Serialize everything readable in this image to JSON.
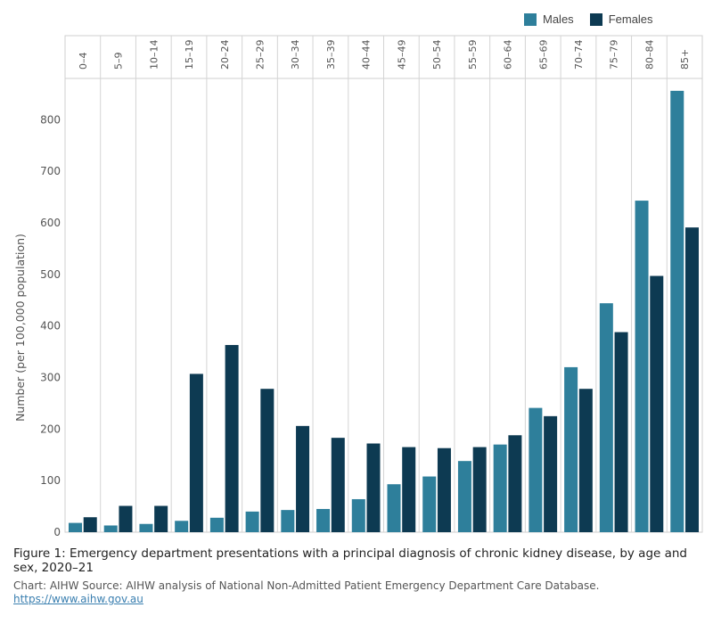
{
  "chart_data": {
    "type": "bar",
    "ylabel": "Number (per 100,000 population)",
    "yticks": [
      0,
      100,
      200,
      300,
      400,
      500,
      600,
      700,
      800
    ],
    "ylim": [
      0,
      880
    ],
    "grid": false,
    "legend_position": "top-right",
    "categories": [
      "0–4",
      "5–9",
      "10–14",
      "15–19",
      "20–24",
      "25–29",
      "30–34",
      "35–39",
      "40–44",
      "45–49",
      "50–54",
      "55–59",
      "60–64",
      "65–69",
      "70–74",
      "75–79",
      "80–84",
      "85+"
    ],
    "series": [
      {
        "name": "Males",
        "color": "#2e7f9b",
        "values": [
          18,
          13,
          16,
          22,
          28,
          40,
          43,
          45,
          64,
          93,
          108,
          138,
          170,
          241,
          320,
          444,
          643,
          856
        ]
      },
      {
        "name": "Females",
        "color": "#0d3a52",
        "values": [
          29,
          51,
          51,
          307,
          363,
          278,
          206,
          183,
          172,
          165,
          163,
          165,
          188,
          225,
          278,
          388,
          497,
          591
        ]
      }
    ]
  },
  "caption": "Figure 1: Emergency department presentations with a principal diagnosis of chronic kidney disease, by age and sex, 2020–21",
  "credit": "Chart: AIHW  Source: AIHW analysis of National Non-Admitted Patient Emergency Department Care Database.",
  "link": "https://www.aihw.gov.au"
}
